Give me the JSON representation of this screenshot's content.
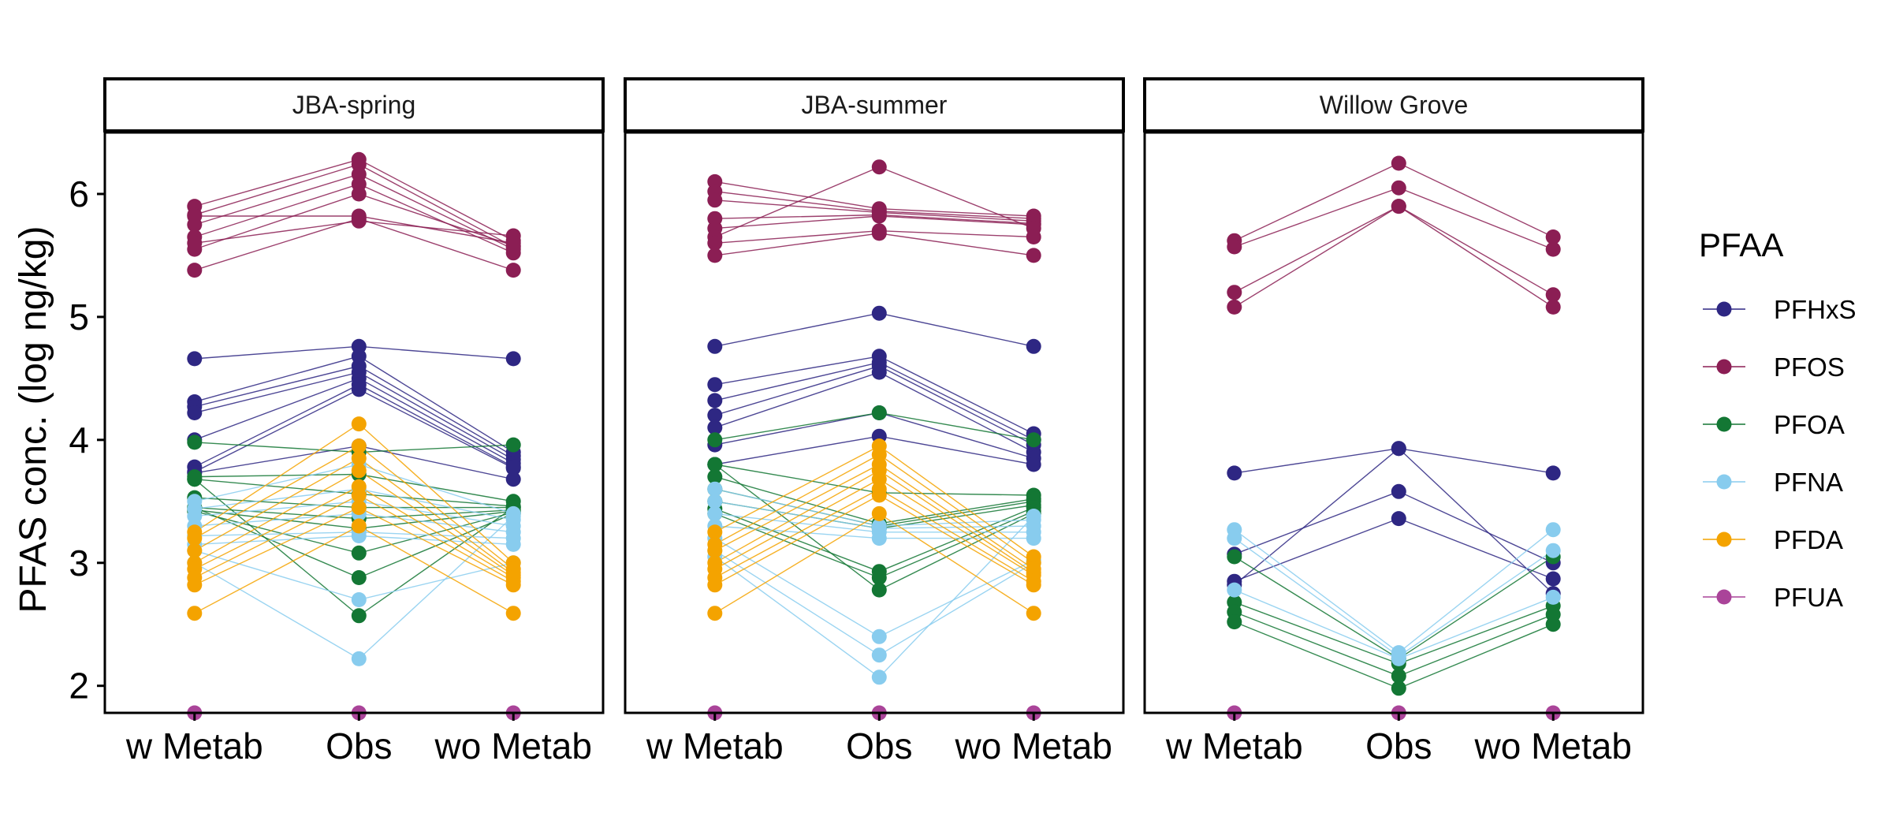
{
  "chart_data": {
    "type": "line",
    "ylabel": "PFAS conc. (log ng/kg)",
    "xlabel": "",
    "categories": [
      "w Metab",
      "Obs",
      "wo Metab"
    ],
    "ylim": [
      1.78,
      6.5
    ],
    "yticks": [
      2,
      3,
      4,
      5,
      6
    ],
    "grid": false,
    "legend": {
      "title": "PFAA",
      "placement": "right",
      "entries": [
        "PFHxS",
        "PFOS",
        "PFOA",
        "PFNA",
        "PFDA",
        "PFUA"
      ]
    },
    "colors": {
      "PFHxS": "#2e2783",
      "PFOS": "#8b1e54",
      "PFOA": "#137734",
      "PFNA": "#88ccee",
      "PFDA": "#f4a300",
      "PFUA": "#aa4499"
    },
    "panels": [
      {
        "label": "JBA-spring",
        "series": [
          {
            "name": "PFOS",
            "lines": [
              [
                5.9,
                6.28,
                5.62
              ],
              [
                5.83,
                6.24,
                5.57
              ],
              [
                5.75,
                6.16,
                5.55
              ],
              [
                5.65,
                6.08,
                5.52
              ],
              [
                5.55,
                6.0,
                5.58
              ],
              [
                5.38,
                5.8,
                5.38
              ],
              [
                5.6,
                5.78,
                5.66
              ],
              [
                5.82,
                5.82,
                5.6
              ]
            ]
          },
          {
            "name": "PFHxS",
            "lines": [
              [
                4.66,
                4.76,
                4.66
              ],
              [
                4.31,
                4.68,
                3.9
              ],
              [
                4.27,
                4.6,
                3.87
              ],
              [
                4.22,
                4.55,
                3.84
              ],
              [
                4.0,
                4.5,
                3.81
              ],
              [
                3.78,
                4.45,
                3.78
              ],
              [
                3.74,
                4.41,
                3.77
              ],
              [
                3.73,
                3.95,
                3.68
              ]
            ]
          },
          {
            "name": "PFOA",
            "lines": [
              [
                3.98,
                3.9,
                3.96
              ],
              [
                3.7,
                3.72,
                3.5
              ],
              [
                3.68,
                3.56,
                3.46
              ],
              [
                3.53,
                3.45,
                3.45
              ],
              [
                3.45,
                3.36,
                3.43
              ],
              [
                3.43,
                3.28,
                3.42
              ],
              [
                3.42,
                3.08,
                3.41
              ],
              [
                3.45,
                2.88,
                3.4
              ],
              [
                3.68,
                2.57,
                3.45
              ]
            ]
          },
          {
            "name": "PFNA",
            "lines": [
              [
                3.5,
                3.8,
                3.4
              ],
              [
                3.44,
                3.6,
                3.35
              ],
              [
                3.38,
                3.5,
                3.3
              ],
              [
                3.3,
                3.4,
                3.25
              ],
              [
                3.22,
                3.25,
                3.2
              ],
              [
                3.15,
                3.22,
                3.15
              ],
              [
                3.1,
                2.7,
                3.0
              ],
              [
                3.0,
                2.22,
                3.38
              ]
            ]
          },
          {
            "name": "PFDA",
            "lines": [
              [
                3.25,
                4.13,
                3.0
              ],
              [
                3.2,
                3.95,
                2.95
              ],
              [
                3.1,
                3.85,
                2.92
              ],
              [
                3.0,
                3.75,
                2.9
              ],
              [
                2.95,
                3.62,
                2.88
              ],
              [
                2.88,
                3.55,
                2.85
              ],
              [
                2.82,
                3.45,
                2.82
              ],
              [
                2.59,
                3.3,
                2.59
              ]
            ]
          },
          {
            "name": "PFUA",
            "lines": [
              [
                1.78,
                1.78,
                1.78
              ]
            ]
          }
        ]
      },
      {
        "label": "JBA-summer",
        "series": [
          {
            "name": "PFOS",
            "lines": [
              [
                6.1,
                5.88,
                5.82
              ],
              [
                6.02,
                5.86,
                5.8
              ],
              [
                5.95,
                5.85,
                5.78
              ],
              [
                5.8,
                5.83,
                5.76
              ],
              [
                5.72,
                5.82,
                5.75
              ],
              [
                5.65,
                6.22,
                5.72
              ],
              [
                5.6,
                5.7,
                5.65
              ],
              [
                5.5,
                5.68,
                5.5
              ]
            ]
          },
          {
            "name": "PFHxS",
            "lines": [
              [
                4.76,
                5.03,
                4.76
              ],
              [
                4.45,
                4.68,
                4.05
              ],
              [
                4.32,
                4.63,
                4.0
              ],
              [
                4.2,
                4.6,
                3.96
              ],
              [
                4.1,
                4.55,
                3.9
              ],
              [
                3.96,
                4.22,
                3.85
              ],
              [
                3.8,
                4.03,
                3.8
              ]
            ]
          },
          {
            "name": "PFOA",
            "lines": [
              [
                4.0,
                4.22,
                4.0
              ],
              [
                3.8,
                3.57,
                3.55
              ],
              [
                3.7,
                3.32,
                3.52
              ],
              [
                3.6,
                3.3,
                3.5
              ],
              [
                3.5,
                3.28,
                3.47
              ],
              [
                3.44,
                2.93,
                3.45
              ],
              [
                3.4,
                2.88,
                3.42
              ],
              [
                3.8,
                2.78,
                3.4
              ]
            ]
          },
          {
            "name": "PFNA",
            "lines": [
              [
                3.6,
                3.3,
                3.35
              ],
              [
                3.5,
                3.28,
                3.3
              ],
              [
                3.4,
                3.25,
                3.25
              ],
              [
                3.3,
                3.2,
                3.2
              ],
              [
                3.2,
                2.4,
                3.02
              ],
              [
                3.1,
                2.25,
                3.0
              ],
              [
                3.05,
                2.07,
                3.38
              ]
            ]
          },
          {
            "name": "PFDA",
            "lines": [
              [
                3.25,
                3.95,
                3.05
              ],
              [
                3.15,
                3.88,
                3.0
              ],
              [
                3.1,
                3.8,
                2.95
              ],
              [
                3.0,
                3.75,
                2.92
              ],
              [
                2.95,
                3.68,
                2.9
              ],
              [
                2.88,
                3.6,
                2.85
              ],
              [
                2.82,
                3.55,
                2.82
              ],
              [
                2.59,
                3.4,
                2.59
              ]
            ]
          },
          {
            "name": "PFUA",
            "lines": [
              [
                1.78,
                1.78,
                1.78
              ]
            ]
          }
        ]
      },
      {
        "label": "Willow Grove",
        "series": [
          {
            "name": "PFOS",
            "lines": [
              [
                5.62,
                6.25,
                5.65
              ],
              [
                5.57,
                6.05,
                5.55
              ],
              [
                5.2,
                5.9,
                5.18
              ],
              [
                5.08,
                5.9,
                5.08
              ]
            ]
          },
          {
            "name": "PFHxS",
            "lines": [
              [
                3.73,
                3.93,
                3.73
              ],
              [
                3.07,
                3.58,
                3.0
              ],
              [
                2.85,
                3.36,
                2.87
              ],
              [
                2.82,
                3.93,
                2.75
              ]
            ]
          },
          {
            "name": "PFOA",
            "lines": [
              [
                3.05,
                2.22,
                3.05
              ],
              [
                2.68,
                2.18,
                2.65
              ],
              [
                2.6,
                2.08,
                2.58
              ],
              [
                2.52,
                1.98,
                2.5
              ]
            ]
          },
          {
            "name": "PFNA",
            "lines": [
              [
                3.27,
                2.27,
                3.27
              ],
              [
                3.2,
                2.24,
                3.1
              ],
              [
                2.78,
                2.22,
                2.72
              ]
            ]
          },
          {
            "name": "PFUA",
            "lines": [
              [
                1.78,
                1.78,
                1.78
              ]
            ]
          }
        ]
      }
    ]
  }
}
